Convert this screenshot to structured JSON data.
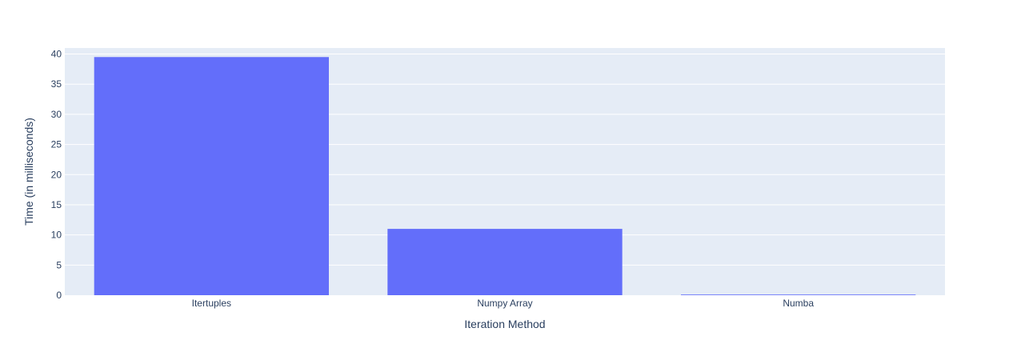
{
  "chart_data": {
    "type": "bar",
    "title": "",
    "xlabel": "Iteration Method",
    "ylabel": "Time (in milliseconds)",
    "categories": [
      "Itertuples",
      "Numpy Array",
      "Numba"
    ],
    "values": [
      39.5,
      11.0,
      0.1
    ],
    "ylim": [
      0,
      41
    ],
    "yticks": [
      0,
      5,
      10,
      15,
      20,
      25,
      30,
      35,
      40
    ],
    "grid": true,
    "legend": "none",
    "colors": {
      "bar": "#636efa",
      "plot_background": "#e5ecf6",
      "grid": "#ffffff",
      "text": "#2a3f5f"
    }
  }
}
